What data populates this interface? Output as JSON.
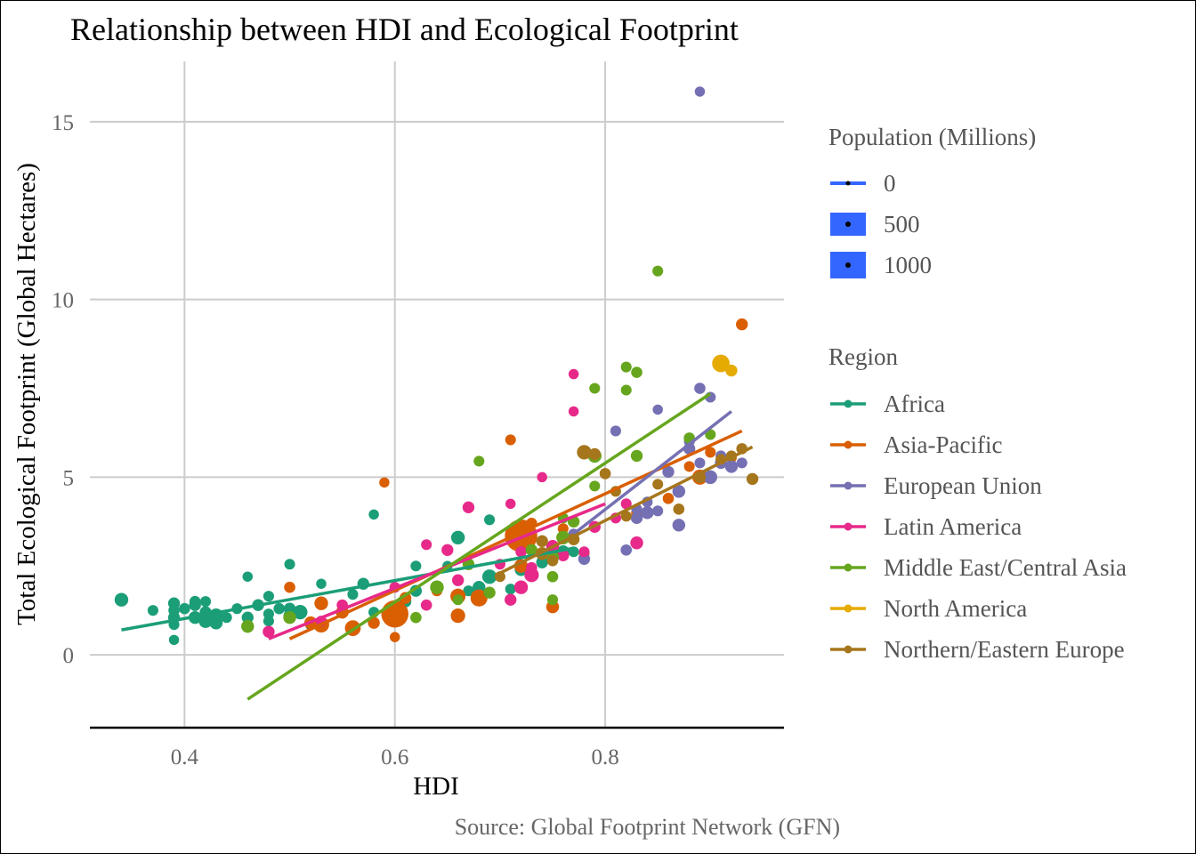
{
  "chart_data": {
    "type": "scatter",
    "title": "Relationship between HDI and Ecological Footprint",
    "xlabel": "HDI",
    "ylabel": "Total Ecological Footprint (Global Hectares)",
    "caption": "Source: Global Footprint Network (GFN)",
    "xlim": [
      0.31,
      0.97
    ],
    "ylim": [
      -2.05,
      16.7
    ],
    "x_ticks": [
      0.4,
      0.6,
      0.8
    ],
    "x_tick_labels": [
      "0.4",
      "0.6",
      "0.8"
    ],
    "y_ticks": [
      0,
      5,
      10,
      15
    ],
    "y_tick_labels": [
      "0",
      "5",
      "10",
      "15"
    ],
    "grid": true,
    "legend_placement": "right",
    "size_legend": {
      "title": "Population (Millions)",
      "entries": [
        {
          "label": "0",
          "value": 0
        },
        {
          "label": "500",
          "value": 500
        },
        {
          "label": "1000",
          "value": 1000
        }
      ],
      "key_color": "#3366ff"
    },
    "color_legend": {
      "title": "Region",
      "entries": [
        "Africa",
        "Asia-Pacific",
        "European Union",
        "Latin America",
        "Middle East/Central Asia",
        "North America",
        "Northern/Eastern Europe"
      ]
    },
    "series": [
      {
        "name": "Africa",
        "color": "#1b9e77",
        "trend": [
          [
            0.34,
            0.7
          ],
          [
            0.77,
            3.0
          ]
        ],
        "points": [
          [
            0.34,
            1.55,
            25
          ],
          [
            0.37,
            1.25,
            10
          ],
          [
            0.39,
            1.45,
            15
          ],
          [
            0.39,
            1.25,
            12
          ],
          [
            0.39,
            1.05,
            15
          ],
          [
            0.39,
            0.85,
            10
          ],
          [
            0.39,
            0.42,
            8
          ],
          [
            0.4,
            1.3,
            12
          ],
          [
            0.41,
            1.05,
            20
          ],
          [
            0.41,
            1.4,
            15
          ],
          [
            0.41,
            1.5,
            12
          ],
          [
            0.42,
            1.2,
            15
          ],
          [
            0.42,
            0.95,
            25
          ],
          [
            0.42,
            1.5,
            10
          ],
          [
            0.43,
            1.1,
            30
          ],
          [
            0.43,
            0.9,
            22
          ],
          [
            0.44,
            1.05,
            10
          ],
          [
            0.45,
            1.3,
            10
          ],
          [
            0.46,
            1.05,
            15
          ],
          [
            0.46,
            2.2,
            8
          ],
          [
            0.47,
            1.4,
            15
          ],
          [
            0.48,
            1.65,
            10
          ],
          [
            0.48,
            1.15,
            10
          ],
          [
            0.48,
            0.95,
            10
          ],
          [
            0.49,
            1.3,
            12
          ],
          [
            0.5,
            2.55,
            10
          ],
          [
            0.5,
            1.3,
            15
          ],
          [
            0.5,
            1.1,
            18
          ],
          [
            0.51,
            1.2,
            30
          ],
          [
            0.52,
            0.85,
            12
          ],
          [
            0.53,
            2.0,
            8
          ],
          [
            0.56,
            1.7,
            10
          ],
          [
            0.57,
            2.0,
            15
          ],
          [
            0.58,
            3.95,
            8
          ],
          [
            0.58,
            1.2,
            10
          ],
          [
            0.61,
            1.5,
            15
          ],
          [
            0.62,
            1.8,
            15
          ],
          [
            0.62,
            2.5,
            10
          ],
          [
            0.65,
            2.5,
            8
          ],
          [
            0.66,
            3.3,
            25
          ],
          [
            0.67,
            1.8,
            10
          ],
          [
            0.68,
            1.9,
            20
          ],
          [
            0.69,
            2.2,
            30
          ],
          [
            0.69,
            3.8,
            10
          ],
          [
            0.71,
            1.85,
            10
          ],
          [
            0.72,
            2.4,
            20
          ],
          [
            0.74,
            2.6,
            15
          ],
          [
            0.76,
            2.9,
            20
          ],
          [
            0.77,
            2.9,
            10
          ]
        ]
      },
      {
        "name": "Asia-Pacific",
        "color": "#d95f02",
        "trend": [
          [
            0.5,
            0.45
          ],
          [
            0.93,
            6.3
          ]
        ],
        "points": [
          [
            0.5,
            1.9,
            12
          ],
          [
            0.52,
            0.9,
            20
          ],
          [
            0.53,
            0.85,
            40
          ],
          [
            0.53,
            1.45,
            25
          ],
          [
            0.55,
            1.2,
            20
          ],
          [
            0.56,
            0.75,
            40
          ],
          [
            0.58,
            0.9,
            15
          ],
          [
            0.59,
            4.85,
            8
          ],
          [
            0.6,
            1.15,
            180
          ],
          [
            0.6,
            0.5,
            8
          ],
          [
            0.61,
            1.6,
            15
          ],
          [
            0.64,
            1.8,
            10
          ],
          [
            0.66,
            1.65,
            35
          ],
          [
            0.66,
            1.1,
            30
          ],
          [
            0.68,
            1.6,
            50
          ],
          [
            0.71,
            6.05,
            10
          ],
          [
            0.72,
            3.35,
            280
          ],
          [
            0.72,
            2.5,
            25
          ],
          [
            0.73,
            3.7,
            12
          ],
          [
            0.75,
            1.35,
            20
          ],
          [
            0.76,
            3.55,
            10
          ],
          [
            0.78,
            2.85,
            10
          ],
          [
            0.8,
            5.1,
            10
          ],
          [
            0.83,
            4.0,
            12
          ],
          [
            0.86,
            4.4,
            12
          ],
          [
            0.88,
            5.3,
            10
          ],
          [
            0.89,
            5.0,
            35
          ],
          [
            0.9,
            5.7,
            10
          ],
          [
            0.92,
            5.55,
            10
          ],
          [
            0.93,
            9.3,
            15
          ]
        ]
      },
      {
        "name": "European Union",
        "color": "#7570b3",
        "trend": [
          [
            0.77,
            3.4
          ],
          [
            0.92,
            6.85
          ]
        ],
        "points": [
          [
            0.77,
            3.4,
            10
          ],
          [
            0.78,
            2.7,
            15
          ],
          [
            0.81,
            6.3,
            10
          ],
          [
            0.82,
            2.95,
            12
          ],
          [
            0.83,
            4.1,
            10
          ],
          [
            0.83,
            3.85,
            15
          ],
          [
            0.84,
            4.3,
            10
          ],
          [
            0.84,
            4.0,
            20
          ],
          [
            0.85,
            6.9,
            8
          ],
          [
            0.85,
            4.05,
            10
          ],
          [
            0.86,
            5.15,
            15
          ],
          [
            0.87,
            4.6,
            20
          ],
          [
            0.87,
            3.65,
            20
          ],
          [
            0.88,
            6.0,
            10
          ],
          [
            0.88,
            5.8,
            15
          ],
          [
            0.89,
            5.4,
            10
          ],
          [
            0.89,
            7.5,
            12
          ],
          [
            0.89,
            15.85,
            8
          ],
          [
            0.9,
            5.0,
            25
          ],
          [
            0.9,
            7.25,
            10
          ],
          [
            0.91,
            5.6,
            10
          ],
          [
            0.91,
            5.4,
            15
          ],
          [
            0.92,
            5.3,
            20
          ],
          [
            0.92,
            5.3,
            10
          ],
          [
            0.93,
            5.4,
            10
          ]
        ]
      },
      {
        "name": "Latin America",
        "color": "#e7298a",
        "trend": [
          [
            0.48,
            0.45
          ],
          [
            0.8,
            4.25
          ]
        ],
        "points": [
          [
            0.48,
            0.65,
            15
          ],
          [
            0.53,
            0.95,
            10
          ],
          [
            0.55,
            1.4,
            12
          ],
          [
            0.6,
            1.9,
            10
          ],
          [
            0.63,
            3.1,
            10
          ],
          [
            0.63,
            1.4,
            12
          ],
          [
            0.65,
            2.95,
            15
          ],
          [
            0.66,
            2.1,
            15
          ],
          [
            0.67,
            4.15,
            15
          ],
          [
            0.7,
            2.55,
            10
          ],
          [
            0.71,
            4.25,
            8
          ],
          [
            0.71,
            1.55,
            15
          ],
          [
            0.72,
            2.9,
            12
          ],
          [
            0.72,
            1.9,
            25
          ],
          [
            0.73,
            2.25,
            30
          ],
          [
            0.73,
            2.45,
            12
          ],
          [
            0.74,
            5.0,
            8
          ],
          [
            0.75,
            3.05,
            20
          ],
          [
            0.76,
            2.8,
            15
          ],
          [
            0.77,
            7.9,
            8
          ],
          [
            0.77,
            6.85,
            8
          ],
          [
            0.78,
            2.9,
            10
          ],
          [
            0.79,
            3.6,
            15
          ],
          [
            0.81,
            3.85,
            10
          ],
          [
            0.82,
            4.25,
            10
          ],
          [
            0.83,
            3.15,
            20
          ]
        ]
      },
      {
        "name": "Middle East/Central Asia",
        "color": "#66a61e",
        "trend": [
          [
            0.46,
            -1.25
          ],
          [
            0.9,
            7.35
          ]
        ],
        "points": [
          [
            0.46,
            0.8,
            20
          ],
          [
            0.5,
            1.05,
            20
          ],
          [
            0.62,
            1.05,
            12
          ],
          [
            0.64,
            1.9,
            25
          ],
          [
            0.66,
            1.55,
            10
          ],
          [
            0.67,
            2.55,
            15
          ],
          [
            0.68,
            5.45,
            10
          ],
          [
            0.69,
            1.75,
            15
          ],
          [
            0.73,
            2.95,
            15
          ],
          [
            0.75,
            1.55,
            10
          ],
          [
            0.75,
            2.2,
            12
          ],
          [
            0.75,
            2.75,
            20
          ],
          [
            0.76,
            3.3,
            25
          ],
          [
            0.76,
            3.85,
            10
          ],
          [
            0.77,
            3.75,
            15
          ],
          [
            0.79,
            5.6,
            25
          ],
          [
            0.79,
            7.5,
            10
          ],
          [
            0.79,
            4.75,
            10
          ],
          [
            0.82,
            8.1,
            10
          ],
          [
            0.82,
            7.45,
            10
          ],
          [
            0.83,
            7.95,
            12
          ],
          [
            0.83,
            5.6,
            15
          ],
          [
            0.85,
            10.8,
            10
          ],
          [
            0.88,
            6.1,
            12
          ],
          [
            0.9,
            6.2,
            10
          ]
        ]
      },
      {
        "name": "North America",
        "color": "#e6ab02",
        "trend": [],
        "points": [
          [
            0.91,
            8.2,
            55
          ],
          [
            0.92,
            8.0,
            15
          ]
        ]
      },
      {
        "name": "Northern/Eastern Europe",
        "color": "#a6761d",
        "trend": [
          [
            0.7,
            2.3
          ],
          [
            0.94,
            5.85
          ]
        ],
        "points": [
          [
            0.7,
            2.2,
            10
          ],
          [
            0.74,
            3.2,
            15
          ],
          [
            0.74,
            2.85,
            20
          ],
          [
            0.75,
            2.65,
            12
          ],
          [
            0.77,
            3.25,
            15
          ],
          [
            0.78,
            5.7,
            30
          ],
          [
            0.79,
            5.65,
            15
          ],
          [
            0.8,
            5.1,
            12
          ],
          [
            0.81,
            4.6,
            10
          ],
          [
            0.82,
            3.9,
            10
          ],
          [
            0.85,
            4.8,
            10
          ],
          [
            0.87,
            4.1,
            12
          ],
          [
            0.89,
            5.0,
            15
          ],
          [
            0.91,
            5.5,
            10
          ],
          [
            0.92,
            5.6,
            10
          ],
          [
            0.93,
            5.8,
            12
          ],
          [
            0.94,
            4.95,
            15
          ]
        ]
      }
    ]
  }
}
